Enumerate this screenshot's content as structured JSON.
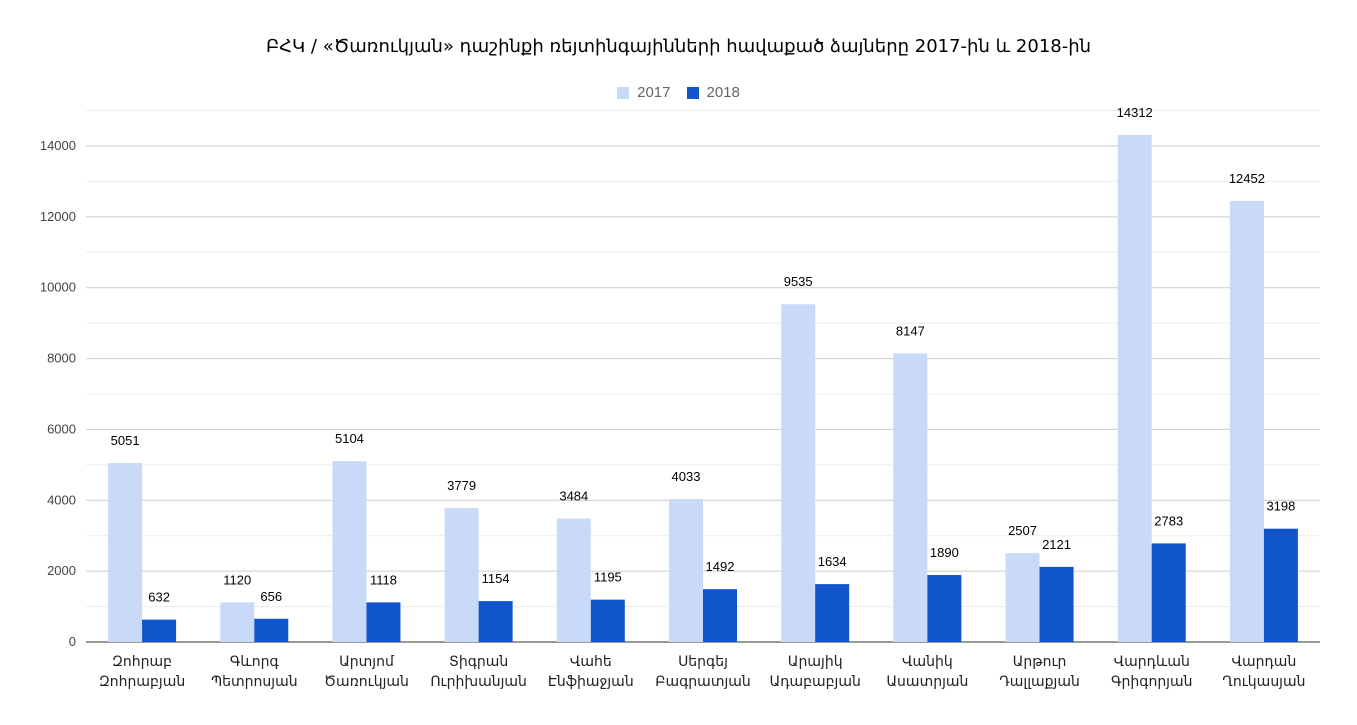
{
  "chart_data": {
    "type": "bar",
    "title": "ԲՀԿ / «Ծառուկյան» դաշինքի ռեյտինգայինների հավաքած ձայները 2017-ին և 2018-ին",
    "xlabel": "",
    "ylabel": "",
    "ylim": [
      0,
      15000
    ],
    "yticks": [
      "0",
      "2000",
      "4000",
      "6000",
      "8000",
      "10000",
      "12000",
      "14000"
    ],
    "grid": true,
    "legend_position": "top",
    "categories": [
      [
        "Զոհրաբ",
        "Զոհրաբյան"
      ],
      [
        "Գևորգ",
        "Պետրոսյան"
      ],
      [
        "Արտյոմ",
        "Ծառուկյան"
      ],
      [
        "Տիգրան",
        "Ուրիխանյան"
      ],
      [
        "Վահե",
        "Էնֆիաջյան"
      ],
      [
        "Սերգեյ",
        "Բագրատյան"
      ],
      [
        "Արայիկ",
        "Ադաբաբյան"
      ],
      [
        "Վանիկ",
        "Ասատրյան"
      ],
      [
        "Արթուր",
        "Դալլաքյան"
      ],
      [
        "Վարդևան",
        "Գրիգորյան"
      ],
      [
        "Վարդան",
        "Ղուկասյան"
      ]
    ],
    "series": [
      {
        "name": "2017",
        "color": "#c9daf8",
        "values": [
          5051,
          1120,
          5104,
          3779,
          3484,
          4033,
          9535,
          8147,
          2507,
          14312,
          12452
        ]
      },
      {
        "name": "2018",
        "color": "#1155cc",
        "values": [
          632,
          656,
          1118,
          1154,
          1195,
          1492,
          1634,
          1890,
          2121,
          2783,
          3198
        ]
      }
    ]
  }
}
